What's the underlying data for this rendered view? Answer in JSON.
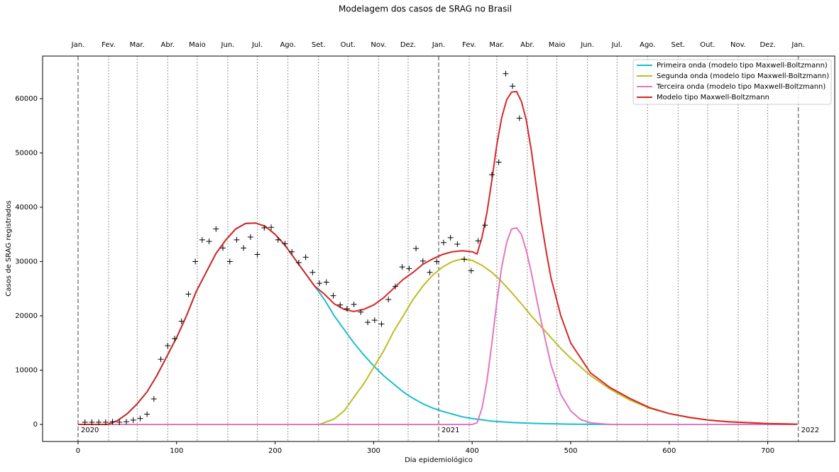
{
  "chart_data": {
    "type": "line",
    "title": "Modelagem dos casos de SRAG no Brasil",
    "x_label": "Dia epidemiológico",
    "y_label": "Casos de SRAG registrados",
    "xlim": [
      -36,
      768
    ],
    "ylim": [
      -3140,
      67840
    ],
    "xticks": [
      0,
      100,
      200,
      300,
      400,
      500,
      600,
      700
    ],
    "yticks": [
      0,
      10000,
      20000,
      30000,
      40000,
      50000,
      60000
    ],
    "month_ticks": [
      {
        "value": 0,
        "label": "Jan."
      },
      {
        "value": 31,
        "label": "Fev."
      },
      {
        "value": 60,
        "label": "Mar."
      },
      {
        "value": 91,
        "label": "Abr."
      },
      {
        "value": 121,
        "label": "Maio"
      },
      {
        "value": 152,
        "label": "Jun."
      },
      {
        "value": 182,
        "label": "Jul."
      },
      {
        "value": 213,
        "label": "Ago."
      },
      {
        "value": 244,
        "label": "Set."
      },
      {
        "value": 274,
        "label": "Out."
      },
      {
        "value": 305,
        "label": "Nov."
      },
      {
        "value": 335,
        "label": "Dez."
      },
      {
        "value": 366,
        "label": "Jan."
      },
      {
        "value": 397,
        "label": "Fev."
      },
      {
        "value": 425,
        "label": "Mar."
      },
      {
        "value": 456,
        "label": "Abr."
      },
      {
        "value": 486,
        "label": "Maio"
      },
      {
        "value": 517,
        "label": "Jun."
      },
      {
        "value": 547,
        "label": "Jul."
      },
      {
        "value": 578,
        "label": "Ago."
      },
      {
        "value": 609,
        "label": "Set."
      },
      {
        "value": 639,
        "label": "Out."
      },
      {
        "value": 670,
        "label": "Nov."
      },
      {
        "value": 700,
        "label": "Dez."
      },
      {
        "value": 731,
        "label": "Jan."
      }
    ],
    "year_labels": [
      {
        "value": 0,
        "label": "2020"
      },
      {
        "value": 366,
        "label": "2021"
      },
      {
        "value": 731,
        "label": "2022"
      }
    ],
    "legend": "upper right",
    "series": [
      {
        "name": "Primeira onda (modelo tipo Maxwell-Boltzmann)",
        "color": "#17becf",
        "x": [
          0,
          30,
          40,
          50,
          60,
          70,
          80,
          90,
          100,
          110,
          120,
          130,
          140,
          150,
          160,
          170,
          180,
          190,
          200,
          210,
          220,
          230,
          240,
          250,
          260,
          270,
          280,
          290,
          300,
          310,
          320,
          330,
          340,
          350,
          360,
          370,
          380,
          390,
          400,
          420,
          440,
          460,
          500,
          550,
          730
        ],
        "values": [
          0,
          0,
          700,
          2000,
          3800,
          6000,
          9000,
          12500,
          16000,
          20000,
          24500,
          28000,
          31500,
          34000,
          36000,
          37000,
          37100,
          36500,
          35000,
          33000,
          30500,
          28000,
          25500,
          23000,
          20000,
          17500,
          15000,
          12800,
          10800,
          9000,
          7500,
          6000,
          4800,
          3800,
          3000,
          2400,
          1900,
          1400,
          1100,
          600,
          350,
          200,
          50,
          0,
          0
        ]
      },
      {
        "name": "Segunda onda (modelo tipo Maxwell-Boltzmann)",
        "color": "#bcbd22",
        "x": [
          0,
          245,
          260,
          270,
          280,
          290,
          300,
          310,
          320,
          330,
          340,
          350,
          360,
          370,
          380,
          390,
          400,
          410,
          420,
          430,
          440,
          450,
          460,
          470,
          480,
          490,
          500,
          520,
          540,
          560,
          580,
          600,
          620,
          640,
          660,
          700,
          730
        ],
        "values": [
          0,
          0,
          1000,
          2500,
          5000,
          7500,
          10500,
          13500,
          17000,
          20000,
          23000,
          25500,
          27500,
          29000,
          30000,
          30500,
          30200,
          29300,
          28000,
          26300,
          24300,
          22200,
          20000,
          18000,
          16000,
          14000,
          12200,
          9000,
          6500,
          4500,
          3000,
          2000,
          1300,
          800,
          500,
          150,
          50
        ]
      },
      {
        "name": "Terceira onda (modelo tipo Maxwell-Boltzmann)",
        "color": "#e377c2",
        "x": [
          0,
          400,
          405,
          410,
          415,
          420,
          425,
          430,
          435,
          440,
          445,
          450,
          455,
          460,
          465,
          470,
          475,
          480,
          490,
          500,
          510,
          520,
          540,
          730
        ],
        "values": [
          0,
          0,
          300,
          3000,
          8000,
          15000,
          22500,
          29000,
          33500,
          36000,
          36200,
          35000,
          32000,
          28000,
          23500,
          19000,
          15000,
          11000,
          5500,
          2500,
          900,
          300,
          0,
          0
        ]
      },
      {
        "name": "Modelo tipo Maxwell-Boltzmann",
        "color": "#d62728",
        "x": [
          0,
          30,
          40,
          50,
          60,
          70,
          80,
          90,
          100,
          110,
          120,
          130,
          140,
          150,
          160,
          170,
          180,
          190,
          200,
          210,
          220,
          230,
          240,
          250,
          260,
          270,
          280,
          290,
          300,
          310,
          320,
          330,
          340,
          350,
          360,
          370,
          380,
          390,
          400,
          405,
          410,
          415,
          420,
          425,
          430,
          435,
          440,
          445,
          450,
          455,
          460,
          465,
          470,
          475,
          480,
          490,
          500,
          520,
          540,
          560,
          580,
          600,
          620,
          640,
          660,
          700,
          730
        ],
        "values": [
          0,
          0,
          700,
          2000,
          3800,
          6000,
          9000,
          12500,
          16000,
          20000,
          24500,
          28000,
          31500,
          34000,
          36000,
          37000,
          37100,
          36500,
          35000,
          33000,
          30500,
          28000,
          25500,
          24000,
          22200,
          21200,
          20800,
          21200,
          22000,
          23300,
          25000,
          26700,
          28000,
          29500,
          30500,
          31300,
          31800,
          32000,
          31800,
          31400,
          34500,
          39000,
          45000,
          51500,
          56500,
          59800,
          61200,
          61300,
          59500,
          56000,
          50500,
          44000,
          37500,
          32000,
          27000,
          20000,
          15000,
          9500,
          6800,
          4800,
          3100,
          2000,
          1300,
          800,
          500,
          150,
          50
        ]
      }
    ],
    "observed": {
      "color": "#000000",
      "x": [
        7,
        14,
        21,
        28,
        35,
        42,
        49,
        56,
        63,
        70,
        77,
        84,
        91,
        98,
        105,
        112,
        119,
        126,
        133,
        140,
        147,
        154,
        161,
        168,
        175,
        182,
        189,
        196,
        203,
        210,
        217,
        224,
        231,
        238,
        245,
        252,
        259,
        266,
        273,
        280,
        287,
        294,
        301,
        308,
        315,
        322,
        329,
        336,
        343,
        350,
        357,
        364,
        371,
        378,
        385,
        392,
        399,
        406,
        413,
        420,
        427,
        434,
        441,
        448
      ],
      "values": [
        400,
        400,
        400,
        400,
        500,
        400,
        500,
        800,
        1100,
        1900,
        4700,
        12000,
        14500,
        15800,
        19000,
        24000,
        30000,
        34000,
        33700,
        36000,
        32500,
        30000,
        34000,
        32500,
        34500,
        31300,
        36200,
        36300,
        34000,
        33300,
        31800,
        29800,
        30800,
        28000,
        26000,
        26200,
        23700,
        22000,
        21300,
        22100,
        20700,
        18800,
        19200,
        18500,
        23000,
        25400,
        29000,
        28700,
        32400,
        30100,
        28000,
        30000,
        33500,
        34400,
        33200,
        30400,
        28300,
        33800,
        36700,
        46000,
        48300,
        64600,
        62300,
        56400
      ]
    }
  }
}
